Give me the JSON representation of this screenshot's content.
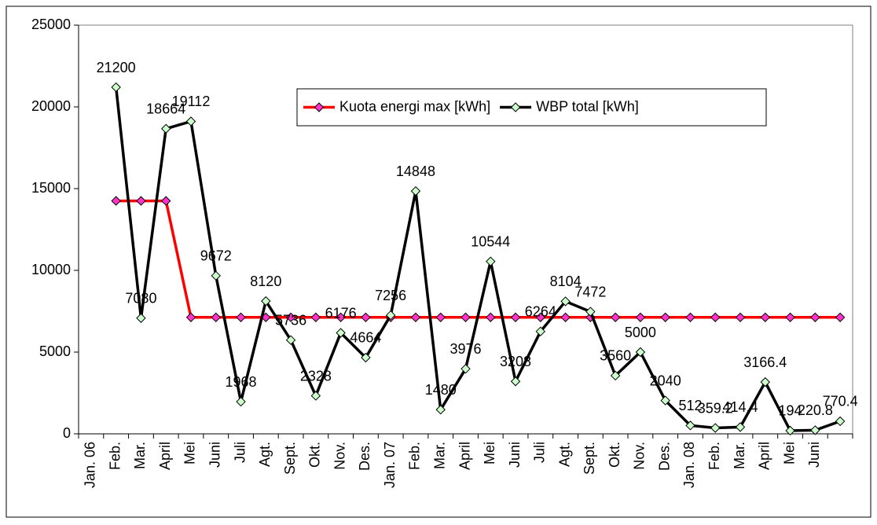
{
  "chart_data": {
    "type": "line",
    "categories": [
      "Jan. 06",
      "Feb.",
      "Mar.",
      "April",
      "Mei",
      "Juni",
      "Juli",
      "Agt.",
      "Sept.",
      "Okt.",
      "Nov.",
      "Des.",
      "Jan. 07",
      "Feb.",
      "Mar.",
      "April",
      "Mei",
      "Juni",
      "Juli",
      "Agt.",
      "Sept.",
      "Okt.",
      "Nov.",
      "Des.",
      "Jan. 08",
      "Feb.",
      "Mar.",
      "April",
      "Mei",
      "Juni",
      null
    ],
    "series": [
      {
        "name": "Kuota energi max [kWh]",
        "color": "#ff0000",
        "marker_color": "#ff33cc",
        "values": [
          null,
          14250,
          14250,
          14250,
          7125,
          7125,
          7125,
          7125,
          7125,
          7125,
          7125,
          7125,
          7125,
          7125,
          7125,
          7125,
          7125,
          7125,
          7125,
          7125,
          7125,
          7125,
          7125,
          7125,
          7125,
          7125,
          7125,
          7125,
          7125,
          7125,
          7125
        ]
      },
      {
        "name": "WBP total [kWh]",
        "color": "#000000",
        "marker_color": "#ccffcc",
        "data_labels": true,
        "values": [
          null,
          21200,
          7080,
          18664,
          19112,
          9672,
          1968,
          8120,
          5736,
          2328,
          6176,
          4664,
          7256,
          14848,
          1480,
          3976,
          10544,
          3208,
          6264,
          8104,
          7472,
          3560,
          5000,
          2040,
          512,
          359.2,
          414.4,
          3166.4,
          194,
          220.8,
          770.4
        ]
      }
    ],
    "ylim": [
      0,
      25000
    ],
    "yticks": [
      0,
      5000,
      10000,
      15000,
      20000,
      25000
    ],
    "grid": false,
    "legend": "upper center"
  }
}
